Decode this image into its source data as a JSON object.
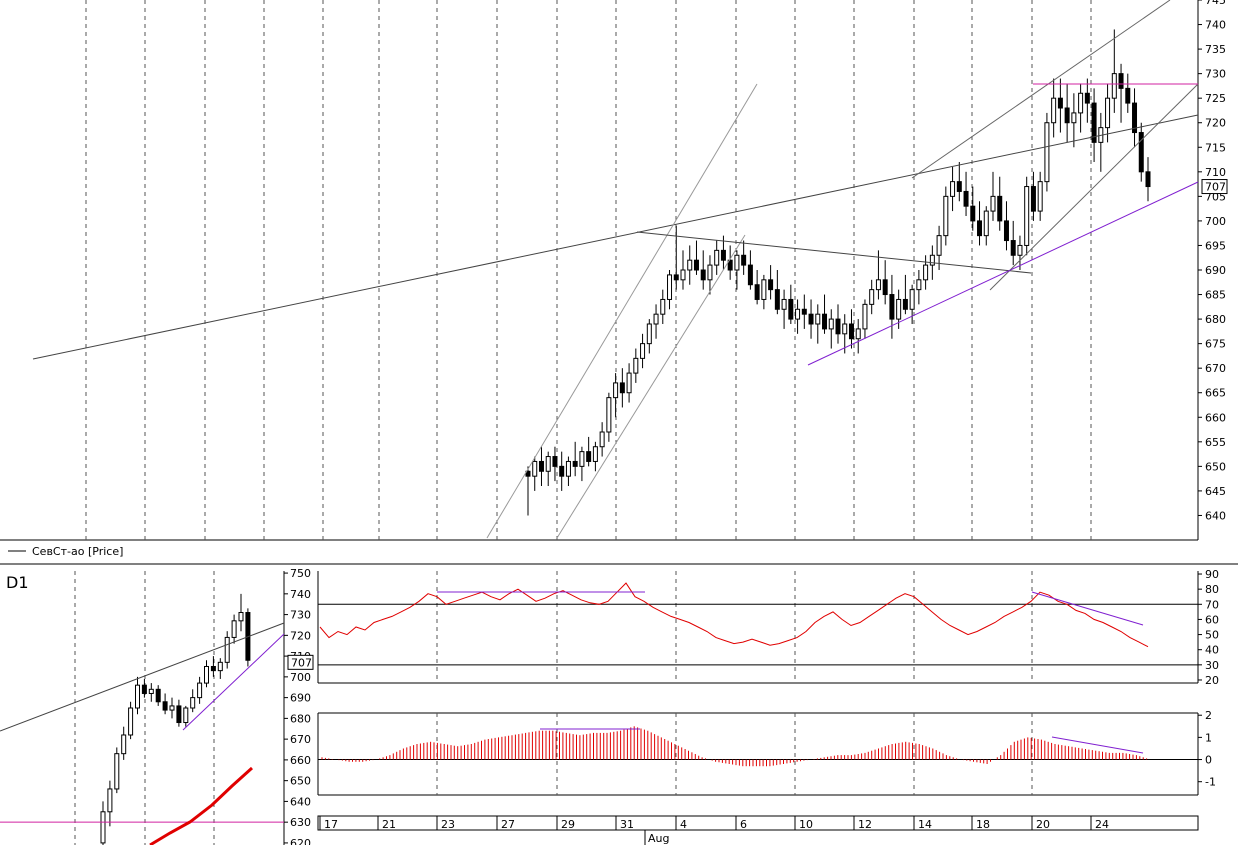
{
  "legend": {
    "label": "СевСт-ао [Price]"
  },
  "timeframe": "D1",
  "chart_data": [
    {
      "id": "main",
      "type": "candlestick",
      "ylim": [
        635,
        745
      ],
      "yticks": [
        640,
        645,
        650,
        655,
        660,
        665,
        670,
        675,
        680,
        685,
        690,
        695,
        700,
        705,
        710,
        715,
        720,
        725,
        730,
        735,
        740,
        745
      ],
      "last_price": "707",
      "bars": [
        [
          649,
          650,
          640,
          648
        ],
        [
          648,
          652,
          645,
          651
        ],
        [
          651,
          654,
          646,
          649
        ],
        [
          649,
          653,
          646,
          652
        ],
        [
          652,
          654,
          647,
          650
        ],
        [
          650,
          653,
          645,
          648
        ],
        [
          648,
          652,
          646,
          651
        ],
        [
          651,
          655,
          648,
          650
        ],
        [
          650,
          654,
          647,
          653
        ],
        [
          653,
          656,
          650,
          651
        ],
        [
          651,
          655,
          649,
          654
        ],
        [
          654,
          659,
          652,
          657
        ],
        [
          657,
          665,
          655,
          664
        ],
        [
          664,
          669,
          660,
          667
        ],
        [
          667,
          670,
          662,
          665
        ],
        [
          665,
          671,
          663,
          669
        ],
        [
          669,
          674,
          667,
          672
        ],
        [
          672,
          677,
          670,
          675
        ],
        [
          675,
          680,
          673,
          679
        ],
        [
          679,
          683,
          676,
          681
        ],
        [
          681,
          686,
          679,
          684
        ],
        [
          684,
          690,
          682,
          689
        ],
        [
          689,
          699,
          686,
          688
        ],
        [
          688,
          694,
          686,
          690
        ],
        [
          690,
          695,
          687,
          692
        ],
        [
          692,
          696,
          689,
          690
        ],
        [
          690,
          694,
          686,
          688
        ],
        [
          688,
          693,
          685,
          691
        ],
        [
          691,
          696,
          689,
          694
        ],
        [
          694,
          697,
          690,
          692
        ],
        [
          692,
          695,
          688,
          690
        ],
        [
          690,
          694,
          686,
          693
        ],
        [
          693,
          696,
          689,
          691
        ],
        [
          691,
          694,
          686,
          687
        ],
        [
          687,
          690,
          683,
          684
        ],
        [
          684,
          689,
          682,
          688
        ],
        [
          688,
          691,
          684,
          686
        ],
        [
          686,
          690,
          681,
          682
        ],
        [
          682,
          686,
          678,
          684
        ],
        [
          684,
          687,
          679,
          680
        ],
        [
          680,
          684,
          677,
          682
        ],
        [
          682,
          685,
          678,
          681
        ],
        [
          681,
          684,
          676,
          679
        ],
        [
          679,
          683,
          675,
          681
        ],
        [
          681,
          685,
          677,
          678
        ],
        [
          678,
          682,
          674,
          680
        ],
        [
          680,
          683,
          675,
          677
        ],
        [
          677,
          681,
          673,
          679
        ],
        [
          679,
          682,
          674,
          676
        ],
        [
          676,
          680,
          673,
          678
        ],
        [
          678,
          684,
          676,
          683
        ],
        [
          683,
          688,
          681,
          686
        ],
        [
          686,
          694,
          684,
          688
        ],
        [
          688,
          692,
          683,
          685
        ],
        [
          685,
          689,
          676,
          680
        ],
        [
          680,
          686,
          678,
          684
        ],
        [
          684,
          689,
          681,
          682
        ],
        [
          682,
          687,
          679,
          686
        ],
        [
          686,
          690,
          683,
          688
        ],
        [
          688,
          693,
          686,
          691
        ],
        [
          691,
          695,
          688,
          693
        ],
        [
          693,
          699,
          690,
          697
        ],
        [
          697,
          707,
          695,
          705
        ],
        [
          705,
          711,
          702,
          708
        ],
        [
          708,
          712,
          704,
          706
        ],
        [
          706,
          710,
          701,
          703
        ],
        [
          703,
          707,
          698,
          700
        ],
        [
          700,
          704,
          695,
          697
        ],
        [
          697,
          703,
          695,
          702
        ],
        [
          702,
          710,
          700,
          705
        ],
        [
          705,
          709,
          698,
          700
        ],
        [
          700,
          704,
          694,
          696
        ],
        [
          696,
          700,
          691,
          693
        ],
        [
          693,
          697,
          690,
          695
        ],
        [
          695,
          709,
          693,
          707
        ],
        [
          707,
          710,
          700,
          702
        ],
        [
          702,
          710,
          700,
          708
        ],
        [
          708,
          722,
          706,
          720
        ],
        [
          720,
          729,
          717,
          725
        ],
        [
          725,
          729,
          718,
          723
        ],
        [
          723,
          728,
          716,
          720
        ],
        [
          720,
          726,
          715,
          722
        ],
        [
          722,
          728,
          718,
          726
        ],
        [
          726,
          729,
          720,
          724
        ],
        [
          724,
          727,
          712,
          716
        ],
        [
          716,
          722,
          710,
          719
        ],
        [
          719,
          728,
          716,
          725
        ],
        [
          725,
          739,
          722,
          730
        ],
        [
          730,
          732,
          720,
          727
        ],
        [
          727,
          730,
          722,
          724
        ],
        [
          724,
          727,
          715,
          718
        ],
        [
          718,
          720,
          708,
          710
        ],
        [
          710,
          713,
          704,
          707
        ]
      ]
    },
    {
      "id": "rsi",
      "type": "line",
      "ylim": [
        18,
        92
      ],
      "yticks": [
        20,
        30,
        40,
        50,
        60,
        70,
        80,
        90
      ],
      "levels": [
        30,
        70
      ],
      "series": [
        {
          "values": [
            55,
            48,
            52,
            50,
            55,
            53,
            58,
            60,
            62,
            65,
            68,
            72,
            77,
            75,
            70,
            72,
            74,
            76,
            78,
            75,
            73,
            77,
            80,
            76,
            72,
            74,
            77,
            79,
            76,
            73,
            71,
            70,
            72,
            78,
            84,
            75,
            72,
            68,
            65,
            62,
            60,
            58,
            55,
            52,
            48,
            46,
            44,
            45,
            47,
            45,
            43,
            44,
            46,
            48,
            52,
            58,
            62,
            65,
            60,
            56,
            58,
            62,
            66,
            70,
            74,
            77,
            75,
            70,
            65,
            60,
            56,
            53,
            50,
            52,
            55,
            58,
            62,
            65,
            68,
            72,
            78,
            76,
            72,
            70,
            66,
            64,
            60,
            58,
            55,
            52,
            48,
            45,
            42
          ]
        }
      ]
    },
    {
      "id": "macd",
      "type": "histogram",
      "ylim": [
        -1.6,
        2.1
      ],
      "yticks": [
        -1,
        0,
        1,
        2
      ],
      "series": [
        {
          "values": [
            0.1,
            0.0,
            -0.1,
            -0.1,
            0.0,
            0.2,
            0.5,
            0.7,
            0.8,
            0.7,
            0.6,
            0.7,
            0.9,
            1.0,
            1.1,
            1.2,
            1.3,
            1.3,
            1.2,
            1.1,
            1.2,
            1.2,
            1.3,
            1.5,
            1.3,
            1.0,
            0.7,
            0.4,
            0.1,
            -0.1,
            -0.2,
            -0.3,
            -0.3,
            -0.3,
            -0.2,
            -0.1,
            0.0,
            0.1,
            0.2,
            0.2,
            0.3,
            0.5,
            0.7,
            0.8,
            0.7,
            0.5,
            0.2,
            0.0,
            -0.1,
            -0.2,
            0.2,
            0.8,
            1.0,
            0.9,
            0.7,
            0.6,
            0.5,
            0.4,
            0.3,
            0.3,
            0.2,
            0.0
          ]
        }
      ]
    },
    {
      "id": "d1",
      "type": "candlestick",
      "ylim": [
        619,
        751
      ],
      "yticks": [
        620,
        630,
        640,
        650,
        660,
        670,
        680,
        690,
        700,
        710,
        720,
        730,
        740,
        750
      ],
      "last_price": "707"
    }
  ],
  "xaxis": {
    "labels": [
      "17",
      "21",
      "23",
      "27",
      "29",
      "31",
      "4",
      "6",
      "10",
      "12",
      "14",
      "18",
      "20",
      "24"
    ],
    "month": "Aug"
  }
}
